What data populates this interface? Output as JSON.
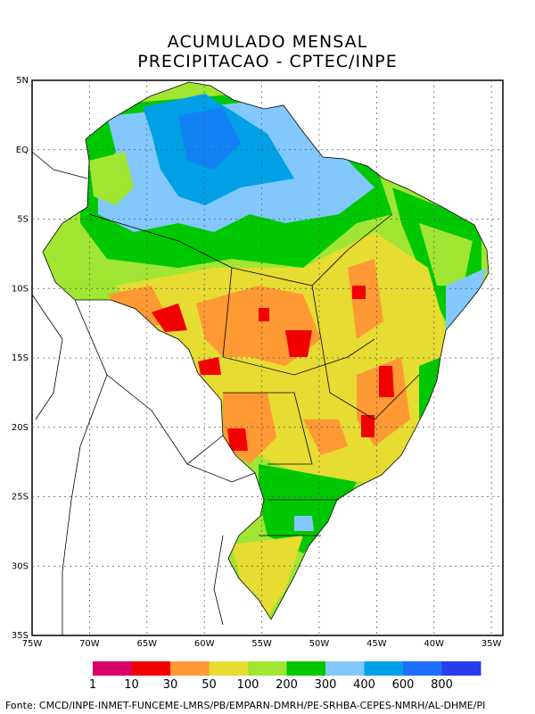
{
  "title_line1": "ACUMULADO MENSAL",
  "title_line2": "PRECIPITACAO - CPTEC/INPE",
  "lat_labels": [
    "5N",
    "EQ",
    "5S",
    "10S",
    "15S",
    "20S",
    "25S",
    "30S",
    "35S"
  ],
  "lon_labels": [
    "75W",
    "70W",
    "65W",
    "60W",
    "55W",
    "50W",
    "45W",
    "40W",
    "35W"
  ],
  "legend": {
    "colors": [
      "#d8006a",
      "#f20000",
      "#ff9933",
      "#e6dc32",
      "#a0e632",
      "#00c800",
      "#82c8ff",
      "#00a0e6",
      "#1e6eff",
      "#283cf0"
    ],
    "labels": [
      "1",
      "10",
      "30",
      "50",
      "100",
      "200",
      "300",
      "400",
      "600",
      "800"
    ]
  },
  "map_data": {
    "region": "Brasil",
    "lon_range": [
      -75,
      -34
    ],
    "lat_range": [
      -35,
      5
    ],
    "field": "Precipitacao acumulada mensal (mm)"
  },
  "footer": "Fonte: CMCD/INPE-INMET-FUNCEME-LMRS/PB/EMPARN-DMRH/PE-SRHBA-CEPES-NMRH/AL-DHME/PI"
}
